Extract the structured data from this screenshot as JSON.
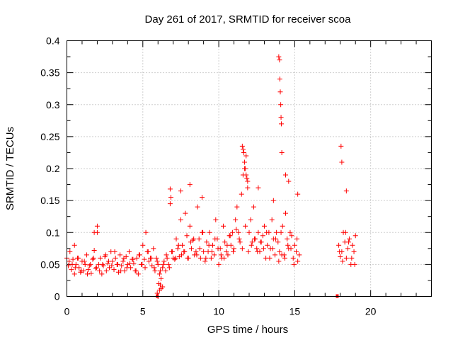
{
  "chart_data": {
    "type": "scatter",
    "title": "Day 261 of 2017, SRMTID for receiver scoa",
    "xlabel": "GPS time / hours",
    "ylabel": "SRMTID / TECUs",
    "xlim": [
      0,
      24
    ],
    "ylim": [
      0,
      0.4
    ],
    "grid": true,
    "legend": "none",
    "marker_color": "#ff0000",
    "x_ticks": [
      {
        "value": 0,
        "label": "0"
      },
      {
        "value": 5,
        "label": "5"
      },
      {
        "value": 10,
        "label": "10"
      },
      {
        "value": 15,
        "label": "15"
      },
      {
        "value": 20,
        "label": "20"
      }
    ],
    "y_ticks": [
      {
        "value": 0,
        "label": "0"
      },
      {
        "value": 0.05,
        "label": "0.05"
      },
      {
        "value": 0.1,
        "label": "0.1"
      },
      {
        "value": 0.15,
        "label": "0.15"
      },
      {
        "value": 0.2,
        "label": "0.2"
      },
      {
        "value": 0.25,
        "label": "0.25"
      },
      {
        "value": 0.3,
        "label": "0.3"
      },
      {
        "value": 0.35,
        "label": "0.35"
      },
      {
        "value": 0.4,
        "label": "0.4"
      }
    ],
    "y_minor_tick_values": [
      0.025,
      0.075,
      0.125,
      0.175,
      0.225,
      0.275,
      0.325,
      0.375
    ],
    "x_minor_tick_values": [
      1,
      2,
      3,
      4,
      6,
      7,
      8,
      9,
      11,
      12,
      13,
      14,
      16,
      17,
      18,
      19,
      21,
      22,
      23
    ],
    "series": [
      {
        "name": "SRMTID",
        "marker": "plus",
        "x": [
          0.1,
          0.2,
          0.3,
          0.4,
          0.5,
          0.6,
          0.7,
          0.8,
          0.9,
          1.0,
          1.1,
          1.2,
          1.3,
          1.4,
          1.5,
          1.6,
          1.7,
          1.8,
          1.9,
          2.0,
          2.1,
          2.2,
          2.3,
          2.4,
          2.5,
          2.6,
          2.7,
          2.8,
          2.9,
          3.0,
          3.1,
          3.2,
          3.3,
          3.4,
          3.5,
          3.6,
          3.7,
          3.8,
          3.9,
          4.0,
          4.1,
          4.2,
          4.3,
          4.4,
          4.5,
          4.6,
          4.7,
          4.8,
          4.9,
          5.0,
          5.1,
          5.2,
          5.3,
          5.4,
          5.5,
          5.6,
          5.7,
          5.8,
          5.9,
          6.0,
          6.1,
          6.2,
          6.3,
          6.4,
          6.5,
          6.6,
          6.7,
          6.8,
          6.9,
          7.0,
          7.1,
          7.2,
          7.3,
          7.4,
          7.5,
          7.6,
          7.7,
          7.8,
          7.9,
          8.0,
          8.1,
          8.2,
          8.3,
          8.4,
          8.5,
          8.6,
          8.7,
          8.8,
          8.9,
          9.0,
          9.1,
          9.2,
          9.3,
          9.4,
          9.5,
          9.6,
          9.7,
          9.8,
          9.9,
          10.0,
          10.1,
          10.2,
          10.3,
          10.4,
          10.5,
          10.6,
          10.7,
          10.8,
          10.9,
          11.0,
          11.1,
          11.2,
          11.3,
          11.4,
          11.5,
          11.6,
          11.7,
          11.8,
          11.9,
          12.0,
          12.1,
          12.2,
          12.3,
          12.4,
          12.5,
          12.6,
          12.7,
          12.8,
          12.9,
          13.0,
          13.1,
          13.2,
          13.3,
          13.4,
          13.5,
          13.6,
          13.7,
          13.8,
          13.9,
          14.0,
          14.1,
          14.2,
          14.3,
          14.4,
          14.5,
          14.6,
          14.7,
          14.8,
          14.9,
          15.0,
          15.1,
          15.2,
          15.3,
          17.9,
          18.0,
          18.1,
          18.2,
          18.3,
          18.4,
          18.5,
          18.6,
          18.7,
          18.8,
          18.9,
          19.0,
          0.0,
          0.15,
          0.35,
          0.55,
          0.75,
          0.95,
          1.15,
          1.35,
          1.55,
          1.75,
          1.95,
          2.15,
          2.35,
          2.55,
          2.75,
          2.95,
          3.15,
          3.35,
          3.55,
          3.75,
          3.95,
          4.15,
          4.35,
          4.55,
          4.75,
          4.95,
          5.15,
          5.35,
          5.55,
          5.75,
          5.95,
          6.15,
          6.35,
          6.55,
          6.75,
          6.95,
          7.15,
          7.35,
          7.55,
          7.75,
          7.95,
          8.15,
          8.35,
          8.55,
          8.75,
          8.95,
          9.15,
          9.35,
          9.55,
          9.75,
          9.95,
          10.15,
          10.35,
          10.55,
          10.75,
          10.95,
          11.15,
          11.35,
          11.55,
          11.75,
          11.95,
          12.15,
          12.35,
          12.55,
          12.75,
          12.95,
          13.15,
          13.35,
          13.55,
          13.75,
          13.95,
          14.15,
          14.35,
          14.55,
          14.75,
          14.95,
          15.15,
          17.95,
          18.15,
          18.35,
          18.55,
          18.75,
          18.95,
          11.55,
          11.6,
          11.65,
          11.7,
          11.75,
          11.8,
          11.85,
          11.9,
          13.95,
          14.0,
          14.02,
          14.05,
          14.08,
          14.1,
          14.12,
          14.15,
          18.05,
          18.1,
          18.4,
          7.5,
          6.8,
          6.85,
          8.1,
          8.9,
          12.6,
          13.6,
          14.4,
          14.6,
          15.2,
          2.0,
          0.5,
          1.8,
          6.0,
          6.1,
          6.2,
          6.3,
          5.95,
          6.05,
          6.15
        ],
        "y": [
          0.048,
          0.07,
          0.042,
          0.058,
          0.035,
          0.05,
          0.06,
          0.045,
          0.038,
          0.055,
          0.04,
          0.05,
          0.065,
          0.042,
          0.048,
          0.036,
          0.058,
          0.072,
          0.044,
          0.1,
          0.05,
          0.06,
          0.035,
          0.048,
          0.062,
          0.04,
          0.052,
          0.045,
          0.07,
          0.055,
          0.042,
          0.06,
          0.05,
          0.038,
          0.065,
          0.048,
          0.055,
          0.04,
          0.062,
          0.05,
          0.07,
          0.045,
          0.058,
          0.052,
          0.04,
          0.06,
          0.035,
          0.065,
          0.05,
          0.08,
          0.058,
          0.1,
          0.07,
          0.055,
          0.06,
          0.048,
          0.075,
          0.04,
          0.06,
          0.05,
          0.035,
          0.028,
          0.045,
          0.055,
          0.04,
          0.06,
          0.05,
          0.145,
          0.07,
          0.06,
          0.058,
          0.09,
          0.075,
          0.062,
          0.12,
          0.08,
          0.07,
          0.13,
          0.095,
          0.06,
          0.11,
          0.075,
          0.088,
          0.065,
          0.07,
          0.14,
          0.09,
          0.06,
          0.1,
          0.07,
          0.055,
          0.085,
          0.07,
          0.1,
          0.06,
          0.08,
          0.065,
          0.12,
          0.09,
          0.05,
          0.075,
          0.06,
          0.11,
          0.085,
          0.07,
          0.065,
          0.095,
          0.08,
          0.1,
          0.075,
          0.12,
          0.14,
          0.1,
          0.085,
          0.16,
          0.19,
          0.2,
          0.22,
          0.18,
          0.1,
          0.12,
          0.085,
          0.14,
          0.09,
          0.075,
          0.1,
          0.07,
          0.085,
          0.095,
          0.11,
          0.06,
          0.08,
          0.1,
          0.075,
          0.12,
          0.09,
          0.065,
          0.1,
          0.085,
          0.07,
          0.1,
          0.11,
          0.065,
          0.13,
          0.09,
          0.075,
          0.1,
          0.095,
          0.06,
          0.08,
          0.07,
          0.055,
          0.065,
          0.08,
          0.062,
          0.07,
          0.1,
          0.085,
          0.06,
          0.075,
          0.09,
          0.05,
          0.08,
          0.07,
          0.095,
          0.06,
          0.055,
          0.05,
          0.045,
          0.06,
          0.04,
          0.055,
          0.035,
          0.05,
          0.06,
          0.045,
          0.04,
          0.05,
          0.065,
          0.055,
          0.048,
          0.07,
          0.05,
          0.04,
          0.06,
          0.045,
          0.052,
          0.058,
          0.04,
          0.065,
          0.05,
          0.045,
          0.07,
          0.06,
          0.045,
          0.055,
          0.04,
          0.05,
          0.065,
          0.045,
          0.07,
          0.06,
          0.08,
          0.065,
          0.07,
          0.06,
          0.085,
          0.09,
          0.065,
          0.075,
          0.1,
          0.06,
          0.08,
          0.07,
          0.09,
          0.075,
          0.065,
          0.06,
          0.08,
          0.095,
          0.07,
          0.105,
          0.09,
          0.075,
          0.11,
          0.07,
          0.08,
          0.09,
          0.07,
          0.085,
          0.075,
          0.1,
          0.06,
          0.075,
          0.09,
          0.055,
          0.065,
          0.06,
          0.08,
          0.075,
          0.05,
          0.09,
          0.07,
          0.055,
          0.1,
          0.085,
          0.06,
          0.05,
          0.235,
          0.23,
          0.225,
          0.21,
          0.2,
          0.19,
          0.185,
          0.17,
          0.375,
          0.37,
          0.34,
          0.32,
          0.3,
          0.28,
          0.27,
          0.225,
          0.235,
          0.21,
          0.165,
          0.165,
          0.168,
          0.155,
          0.175,
          0.155,
          0.17,
          0.15,
          0.19,
          0.18,
          0.16,
          0.11,
          0.08,
          0.1,
          0.0,
          0.01,
          0.012,
          0.015,
          0.005,
          0.02,
          0.018
        ]
      }
    ],
    "zero_markers": [
      {
        "x": 5.95,
        "y": 0
      },
      {
        "x": 17.8,
        "y": 0
      }
    ]
  }
}
